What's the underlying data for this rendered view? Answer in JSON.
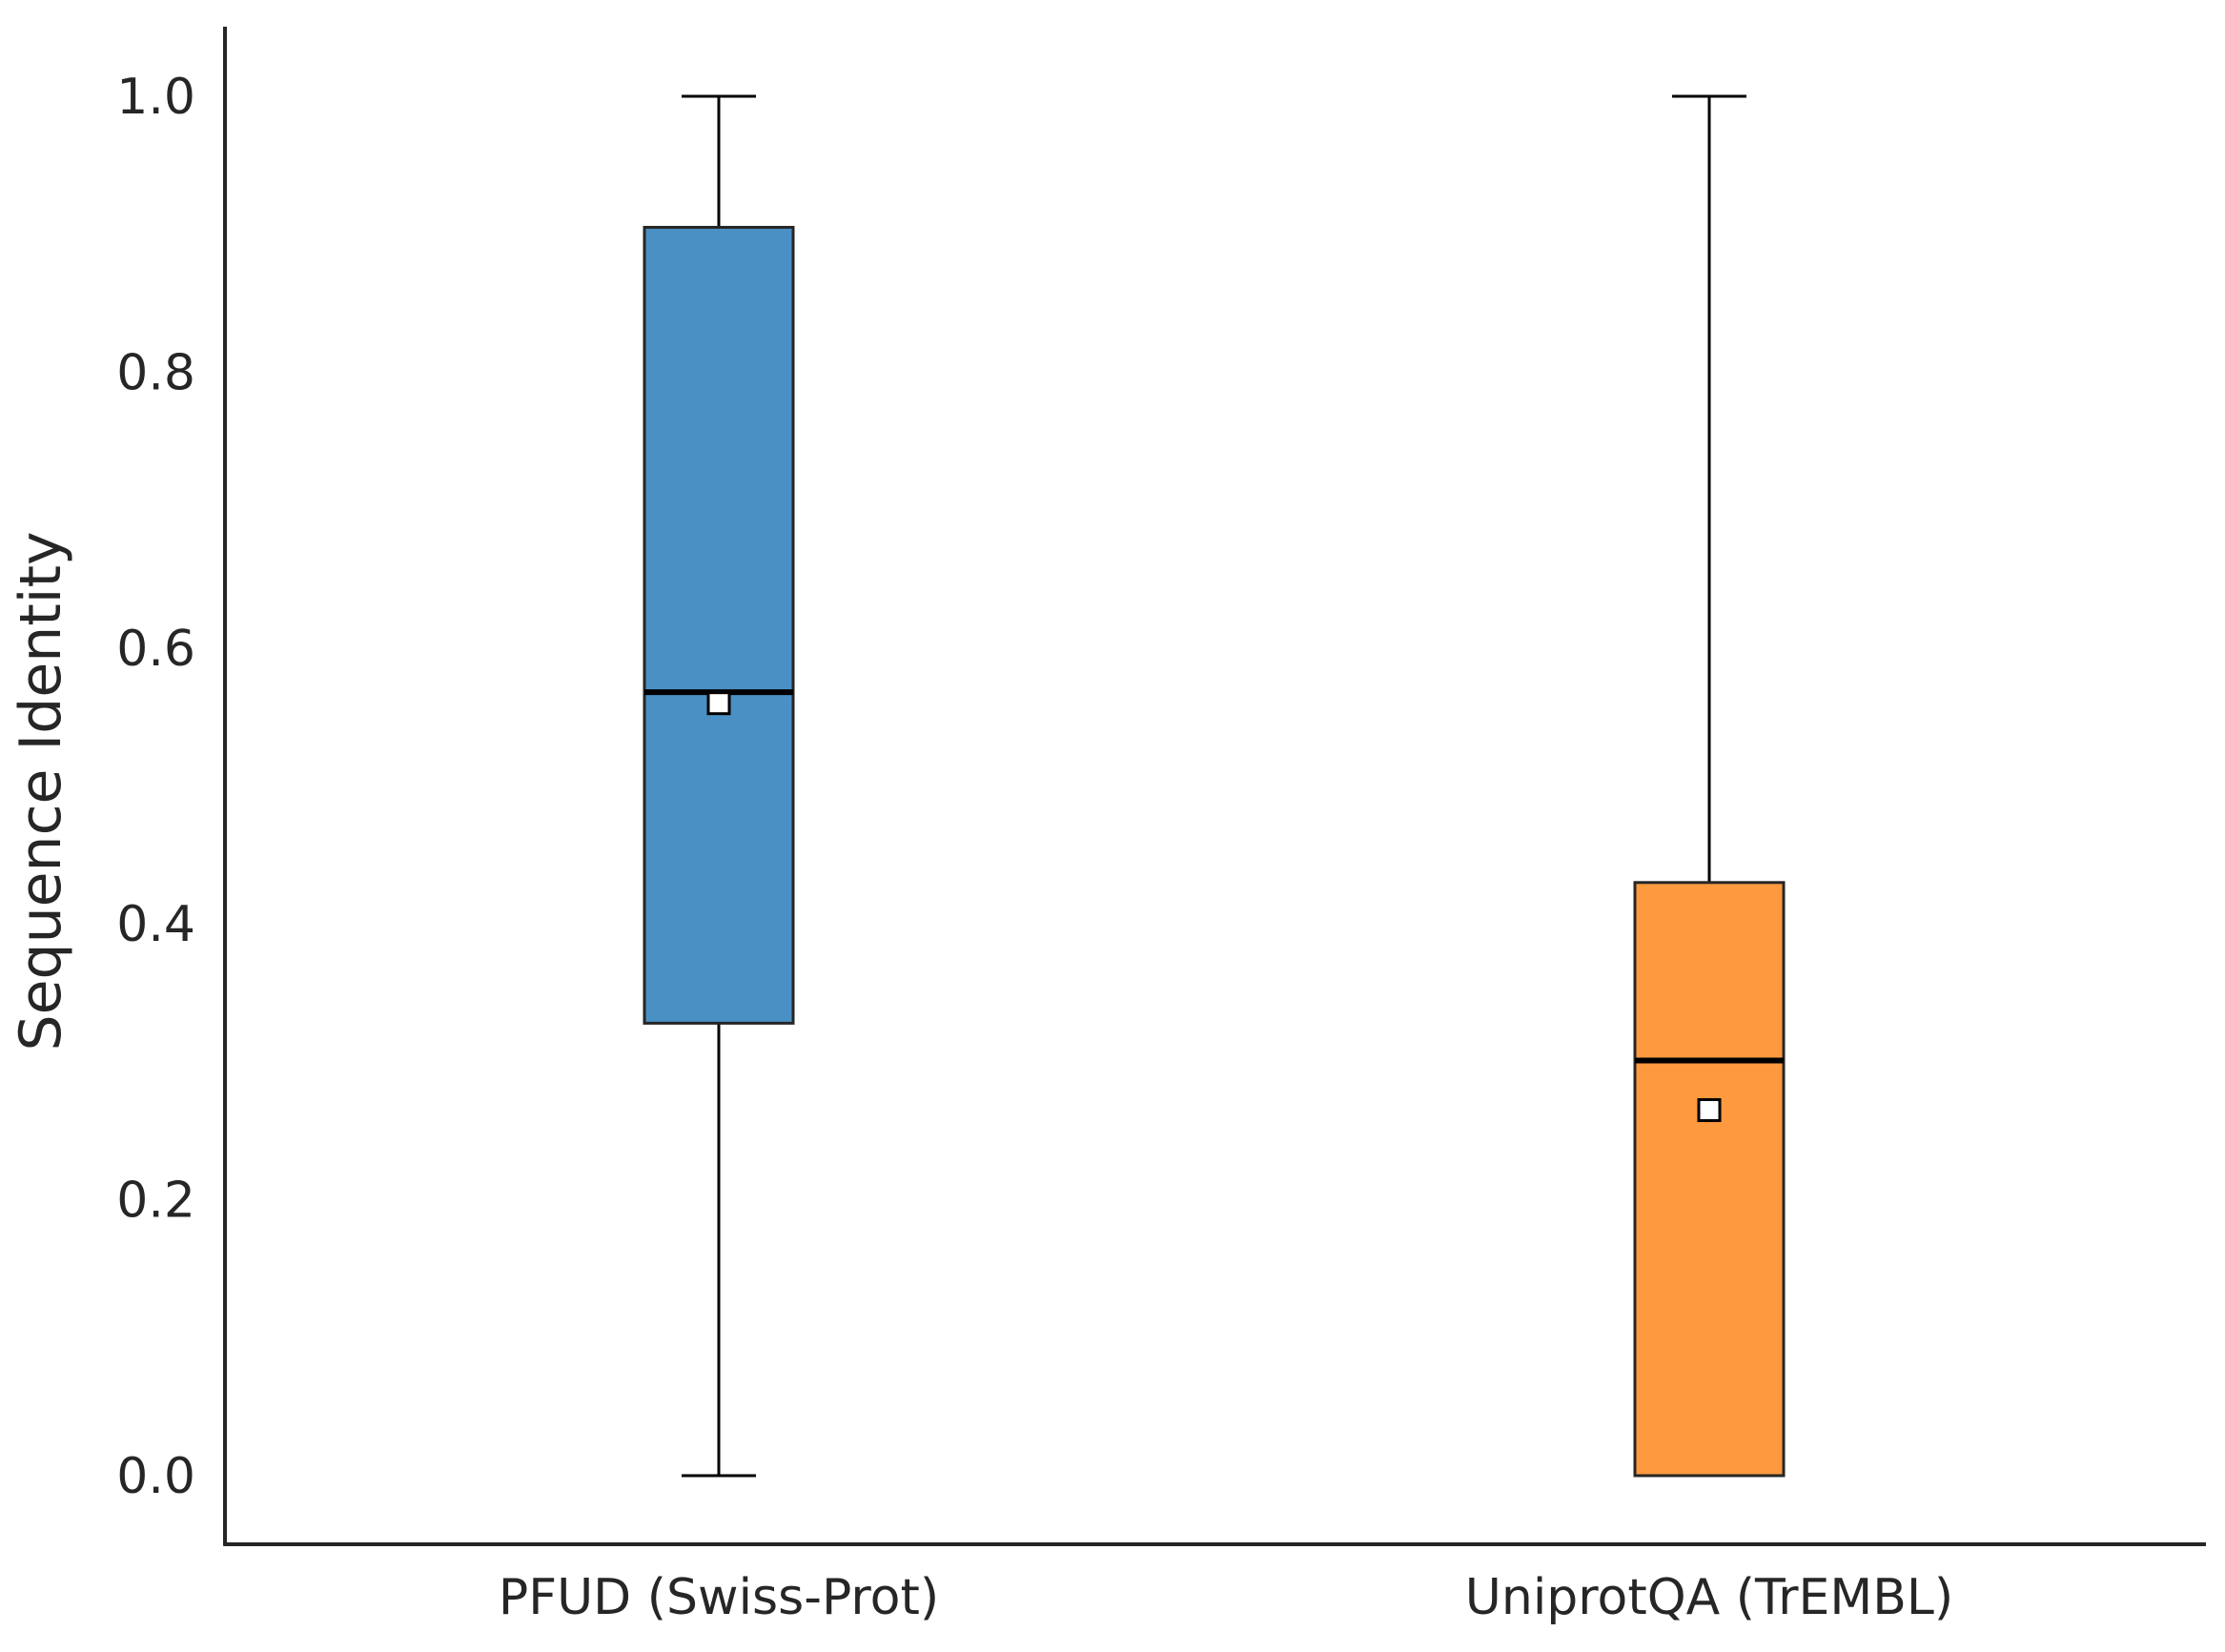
{
  "chart_data": {
    "type": "box",
    "ylabel": "Sequence Identity",
    "xlabel": "",
    "title": "",
    "ylim": [
      -0.05,
      1.05
    ],
    "yticks": [
      "0.0",
      "0.2",
      "0.4",
      "0.6",
      "0.8",
      "1.0"
    ],
    "yticks_values": [
      0.0,
      0.2,
      0.4,
      0.6,
      0.8,
      1.0
    ],
    "grid": false,
    "categories": [
      "PFUD (Swiss-Prot)",
      "UniprotQA (TrEMBL)"
    ],
    "boxes": [
      {
        "whisker_low": 0.0,
        "q1": 0.328,
        "median": 0.568,
        "q3": 0.905,
        "whisker_high": 1.0,
        "mean": 0.56,
        "color": "#4a90c4"
      },
      {
        "whisker_low": 0.0,
        "q1": 0.0,
        "median": 0.301,
        "q3": 0.43,
        "whisker_high": 1.0,
        "mean": 0.265,
        "color": "#fd9a3f"
      }
    ],
    "mean_marker": "white-square"
  }
}
